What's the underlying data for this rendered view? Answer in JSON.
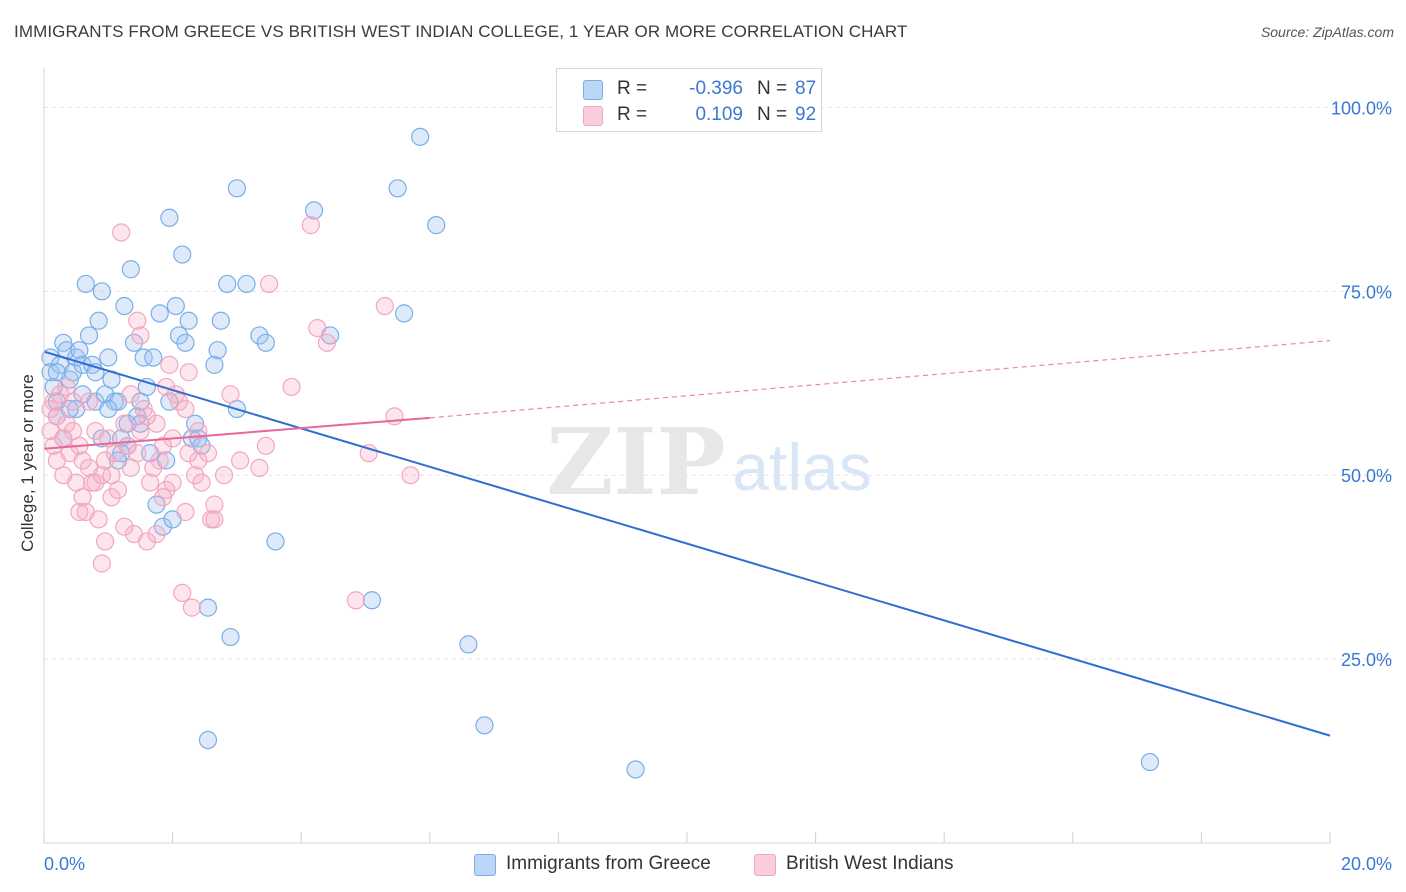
{
  "title": "IMMIGRANTS FROM GREECE VS BRITISH WEST INDIAN COLLEGE, 1 YEAR OR MORE CORRELATION CHART",
  "source": "Source: ZipAtlas.com",
  "watermark": {
    "zip": "ZIP",
    "atlas": "atlas"
  },
  "legend": {
    "rows": [
      {
        "r_label": "R =",
        "r_value": "-0.396",
        "n_label": "N =",
        "n_value": "87",
        "color": "#a9c8f0"
      },
      {
        "r_label": "R =",
        "r_value": "0.109",
        "n_label": "N =",
        "n_value": "92",
        "color": "#f6b8cb"
      }
    ]
  },
  "chart_data": {
    "type": "scatter",
    "title": "IMMIGRANTS FROM GREECE VS BRITISH WEST INDIAN COLLEGE, 1 YEAR OR MORE CORRELATION CHART",
    "xlabel": "",
    "ylabel": "College, 1 year or more",
    "xlim": [
      0,
      20
    ],
    "ylim": [
      0,
      104
    ],
    "x_tick_labels": [
      "0.0%",
      "20.0%"
    ],
    "y_ticks": [
      25,
      50,
      75,
      100
    ],
    "y_tick_labels": [
      "25.0%",
      "50.0%",
      "75.0%",
      "100.0%"
    ],
    "grid": true,
    "legend_position": "top-center",
    "series": [
      {
        "name": "Immigrants from Greece",
        "color": "#7aaee8",
        "line_color": "#2f6fcf",
        "trend": {
          "x": [
            0,
            20
          ],
          "y": [
            66.8,
            14.6
          ]
        },
        "points": [
          [
            0.1,
            66
          ],
          [
            0.1,
            64
          ],
          [
            0.15,
            62
          ],
          [
            0.2,
            60
          ],
          [
            0.2,
            58
          ],
          [
            0.25,
            65
          ],
          [
            0.3,
            68
          ],
          [
            0.35,
            67
          ],
          [
            0.4,
            63
          ],
          [
            0.45,
            64
          ],
          [
            0.5,
            59
          ],
          [
            0.5,
            66
          ],
          [
            0.55,
            67
          ],
          [
            0.6,
            65
          ],
          [
            0.65,
            76
          ],
          [
            0.7,
            69
          ],
          [
            0.75,
            65
          ],
          [
            0.8,
            60
          ],
          [
            0.85,
            71
          ],
          [
            0.9,
            75
          ],
          [
            0.95,
            61
          ],
          [
            1.0,
            66
          ],
          [
            1.05,
            63
          ],
          [
            1.1,
            60
          ],
          [
            1.15,
            60
          ],
          [
            1.2,
            55
          ],
          [
            1.25,
            73
          ],
          [
            1.3,
            57
          ],
          [
            1.3,
            54
          ],
          [
            1.35,
            78
          ],
          [
            1.4,
            68
          ],
          [
            1.45,
            58
          ],
          [
            1.5,
            57
          ],
          [
            1.5,
            60
          ],
          [
            1.55,
            66
          ],
          [
            1.6,
            62
          ],
          [
            1.65,
            53
          ],
          [
            1.7,
            66
          ],
          [
            1.75,
            46
          ],
          [
            1.8,
            72
          ],
          [
            1.85,
            43
          ],
          [
            1.9,
            52
          ],
          [
            1.95,
            60
          ],
          [
            1.95,
            85
          ],
          [
            2.0,
            44
          ],
          [
            2.05,
            73
          ],
          [
            2.1,
            69
          ],
          [
            2.15,
            80
          ],
          [
            2.2,
            68
          ],
          [
            2.25,
            71
          ],
          [
            2.3,
            55
          ],
          [
            2.35,
            57
          ],
          [
            2.4,
            55
          ],
          [
            2.45,
            54
          ],
          [
            2.55,
            32
          ],
          [
            2.65,
            65
          ],
          [
            2.7,
            67
          ],
          [
            2.75,
            71
          ],
          [
            2.85,
            76
          ],
          [
            2.9,
            28
          ],
          [
            3.0,
            59
          ],
          [
            3.0,
            89
          ],
          [
            3.15,
            76
          ],
          [
            3.35,
            69
          ],
          [
            3.45,
            68
          ],
          [
            3.6,
            41
          ],
          [
            4.2,
            86
          ],
          [
            4.45,
            69
          ],
          [
            5.1,
            33
          ],
          [
            5.5,
            89
          ],
          [
            5.6,
            72
          ],
          [
            5.85,
            96
          ],
          [
            6.1,
            84
          ],
          [
            6.6,
            27
          ],
          [
            6.85,
            16
          ],
          [
            9.2,
            10
          ],
          [
            17.2,
            11
          ],
          [
            0.3,
            55
          ],
          [
            0.9,
            55
          ],
          [
            1.2,
            53
          ],
          [
            2.55,
            14
          ],
          [
            0.6,
            61
          ],
          [
            0.4,
            59
          ],
          [
            0.2,
            64
          ],
          [
            1.0,
            59
          ],
          [
            0.8,
            64
          ],
          [
            1.15,
            52
          ]
        ]
      },
      {
        "name": "British West Indians",
        "color": "#f3a7bf",
        "line_color": "#e8679a",
        "trend": {
          "x": [
            0,
            6.0
          ],
          "y": [
            53.6,
            57.8
          ]
        },
        "trend_extension": {
          "x": [
            6.0,
            20
          ],
          "y": [
            57.8,
            68.3
          ]
        },
        "points": [
          [
            0.1,
            59
          ],
          [
            0.1,
            56
          ],
          [
            0.15,
            54
          ],
          [
            0.2,
            58
          ],
          [
            0.25,
            61
          ],
          [
            0.3,
            55
          ],
          [
            0.35,
            57
          ],
          [
            0.4,
            53
          ],
          [
            0.45,
            60
          ],
          [
            0.5,
            49
          ],
          [
            0.55,
            54
          ],
          [
            0.6,
            47
          ],
          [
            0.65,
            45
          ],
          [
            0.7,
            51
          ],
          [
            0.75,
            49
          ],
          [
            0.8,
            56
          ],
          [
            0.85,
            44
          ],
          [
            0.9,
            38
          ],
          [
            0.95,
            41
          ],
          [
            1.0,
            55
          ],
          [
            1.05,
            50
          ],
          [
            1.1,
            53
          ],
          [
            1.15,
            48
          ],
          [
            1.2,
            83
          ],
          [
            1.25,
            43
          ],
          [
            1.3,
            54
          ],
          [
            1.35,
            51
          ],
          [
            1.4,
            42
          ],
          [
            1.45,
            71
          ],
          [
            1.5,
            56
          ],
          [
            1.55,
            59
          ],
          [
            1.6,
            41
          ],
          [
            1.65,
            49
          ],
          [
            1.7,
            51
          ],
          [
            1.75,
            57
          ],
          [
            1.8,
            52
          ],
          [
            1.85,
            47
          ],
          [
            1.9,
            62
          ],
          [
            1.95,
            65
          ],
          [
            2.0,
            55
          ],
          [
            2.05,
            61
          ],
          [
            2.1,
            60
          ],
          [
            2.15,
            34
          ],
          [
            2.2,
            45
          ],
          [
            2.25,
            64
          ],
          [
            2.3,
            32
          ],
          [
            2.35,
            50
          ],
          [
            2.4,
            56
          ],
          [
            2.45,
            49
          ],
          [
            2.55,
            53
          ],
          [
            2.6,
            44
          ],
          [
            2.65,
            46
          ],
          [
            2.8,
            50
          ],
          [
            2.9,
            61
          ],
          [
            3.05,
            52
          ],
          [
            3.35,
            51
          ],
          [
            3.45,
            54
          ],
          [
            3.5,
            76
          ],
          [
            3.85,
            62
          ],
          [
            4.15,
            84
          ],
          [
            4.25,
            70
          ],
          [
            4.4,
            68
          ],
          [
            4.85,
            33
          ],
          [
            5.05,
            53
          ],
          [
            5.45,
            58
          ],
          [
            5.3,
            73
          ],
          [
            5.7,
            50
          ],
          [
            0.2,
            52
          ],
          [
            0.45,
            56
          ],
          [
            0.7,
            60
          ],
          [
            1.35,
            61
          ],
          [
            1.9,
            48
          ],
          [
            2.2,
            59
          ],
          [
            1.75,
            42
          ],
          [
            0.6,
            52
          ],
          [
            0.95,
            52
          ],
          [
            1.25,
            57
          ],
          [
            0.3,
            50
          ],
          [
            0.55,
            45
          ],
          [
            1.6,
            58
          ],
          [
            2.0,
            49
          ],
          [
            2.4,
            52
          ],
          [
            0.15,
            60
          ],
          [
            0.8,
            49
          ],
          [
            1.05,
            47
          ],
          [
            1.5,
            69
          ],
          [
            1.85,
            54
          ],
          [
            2.25,
            53
          ],
          [
            0.35,
            62
          ],
          [
            0.9,
            50
          ],
          [
            1.45,
            53
          ],
          [
            2.65,
            44
          ]
        ]
      }
    ]
  }
}
